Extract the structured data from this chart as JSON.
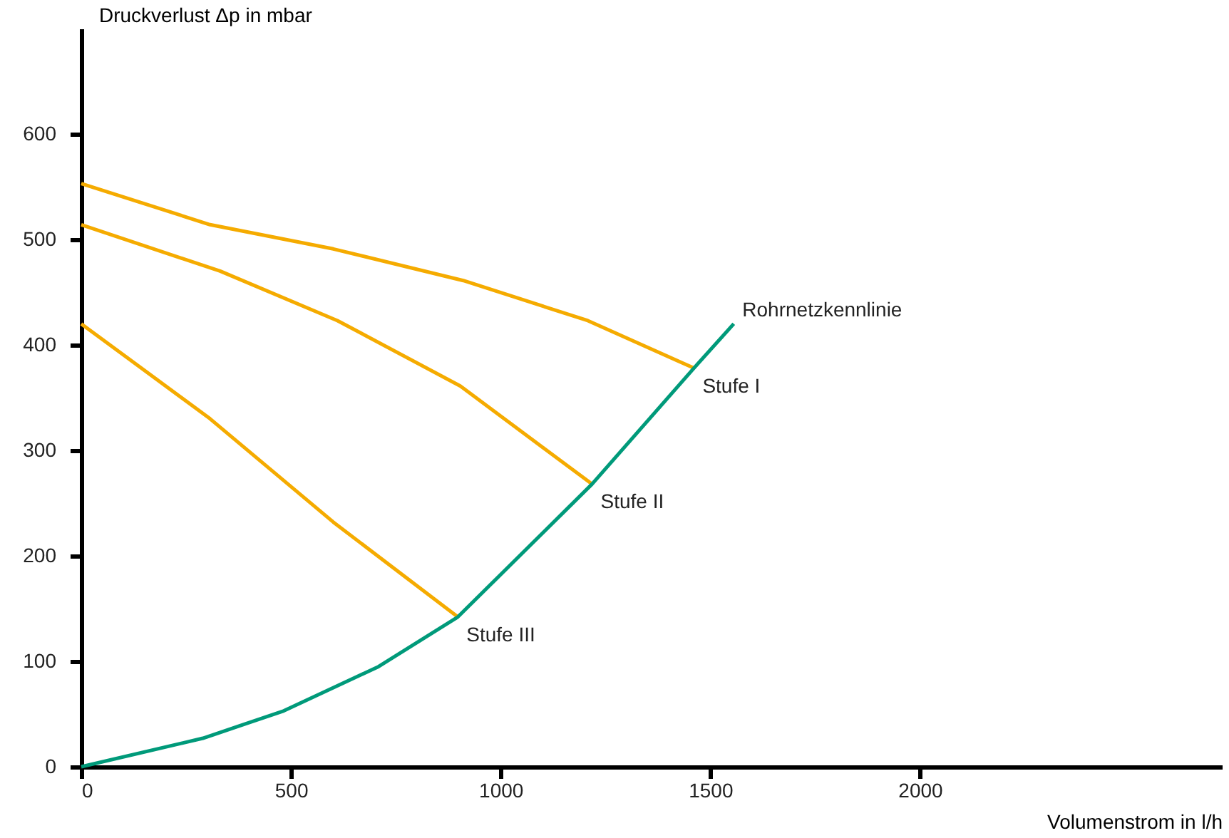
{
  "chart_data": {
    "type": "line",
    "xlabel": "Volumenstrom in l/h",
    "ylabel": "Druckverlust Δp in mbar",
    "xlim": [
      0,
      2720
    ],
    "ylim": [
      0,
      700
    ],
    "xticks": [
      0,
      500,
      1000,
      1500,
      2000
    ],
    "yticks": [
      0,
      100,
      200,
      300,
      400,
      500,
      600
    ],
    "marker": "none",
    "line_style": "solid",
    "series": [
      {
        "name": "Stufe I",
        "color": "#f5ab00",
        "x": [
          0,
          307,
          601,
          911,
          1208,
          1461
        ],
        "values": [
          553,
          514,
          491,
          461,
          423,
          378
        ]
      },
      {
        "name": "Stufe II",
        "color": "#f5ab00",
        "x": [
          0,
          331,
          611,
          904,
          1218
        ],
        "values": [
          514,
          470,
          423,
          361,
          268
        ]
      },
      {
        "name": "Stufe III",
        "color": "#f5ab00",
        "x": [
          0,
          307,
          601,
          898
        ],
        "values": [
          420,
          330,
          232,
          142
        ]
      },
      {
        "name": "Rohrnetzkennlinie",
        "color": "#009a7a",
        "x": [
          0,
          290,
          483,
          709,
          898,
          1218,
          1461,
          1556
        ],
        "values": [
          0,
          27,
          53,
          95,
          142,
          268,
          378,
          420
        ]
      }
    ]
  }
}
